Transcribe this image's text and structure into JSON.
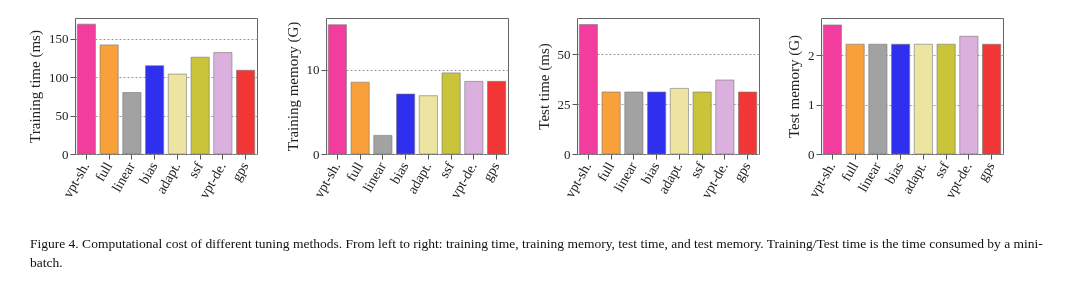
{
  "chart_data": [
    {
      "type": "bar",
      "categories": [
        "vpt-sh.",
        "full",
        "linear",
        "bias",
        "adapt.",
        "ssf",
        "vpt-de.",
        "gps"
      ],
      "values": [
        169,
        142,
        80,
        115,
        104,
        126,
        132,
        109
      ],
      "colors": [
        "#f23d9e",
        "#f8a03a",
        "#a2a2a2",
        "#2f2ff0",
        "#ece4a0",
        "#c9c43a",
        "#dcb0de",
        "#f23636"
      ],
      "ylabel": "Training time (ms)",
      "ylim": [
        0,
        177
      ],
      "yticks": [
        0,
        50,
        100,
        150
      ],
      "grid": "y",
      "annotations": [
        "Figure 4. Computational cost of different tuning methods. From left to right: training time, training memory, test time, and test memory. Training/Test time is the time consumed by a mini-batch."
      ]
    },
    {
      "type": "bar",
      "categories": [
        "vpt-sh.",
        "full",
        "linear",
        "bias",
        "adapt.",
        "ssf",
        "vpt-de.",
        "gps"
      ],
      "values": [
        15.3,
        8.5,
        2.2,
        7.1,
        6.9,
        9.6,
        8.6,
        8.6
      ],
      "colors": [
        "#f23d9e",
        "#f8a03a",
        "#a2a2a2",
        "#2f2ff0",
        "#ece4a0",
        "#c9c43a",
        "#dcb0de",
        "#f23636"
      ],
      "ylabel": "Training memory (G)",
      "ylim": [
        0,
        16.1
      ],
      "yticks": [
        0,
        10
      ],
      "grid": "y"
    },
    {
      "type": "bar",
      "categories": [
        "vpt-sh.",
        "full",
        "linear",
        "bias",
        "adapt.",
        "ssf",
        "vpt-de.",
        "gps"
      ],
      "values": [
        64.7,
        31,
        31,
        31,
        32.8,
        31,
        37,
        31
      ],
      "colors": [
        "#f23d9e",
        "#f8a03a",
        "#a2a2a2",
        "#2f2ff0",
        "#ece4a0",
        "#c9c43a",
        "#dcb0de",
        "#f23636"
      ],
      "ylabel": "Test time (ms)",
      "ylim": [
        0,
        68
      ],
      "yticks": [
        0,
        25,
        50
      ],
      "grid": "y"
    },
    {
      "type": "bar",
      "categories": [
        "vpt-sh.",
        "full",
        "linear",
        "bias",
        "adapt.",
        "ssf",
        "vpt-de.",
        "gps"
      ],
      "values": [
        2.61,
        2.22,
        2.22,
        2.22,
        2.22,
        2.22,
        2.38,
        2.22
      ],
      "colors": [
        "#f23d9e",
        "#f8a03a",
        "#a2a2a2",
        "#2f2ff0",
        "#ece4a0",
        "#c9c43a",
        "#dcb0de",
        "#f23636"
      ],
      "ylabel": "Test memory (G)",
      "ylim": [
        0,
        2.75
      ],
      "yticks": [
        0,
        1,
        2
      ],
      "grid": "y"
    }
  ]
}
